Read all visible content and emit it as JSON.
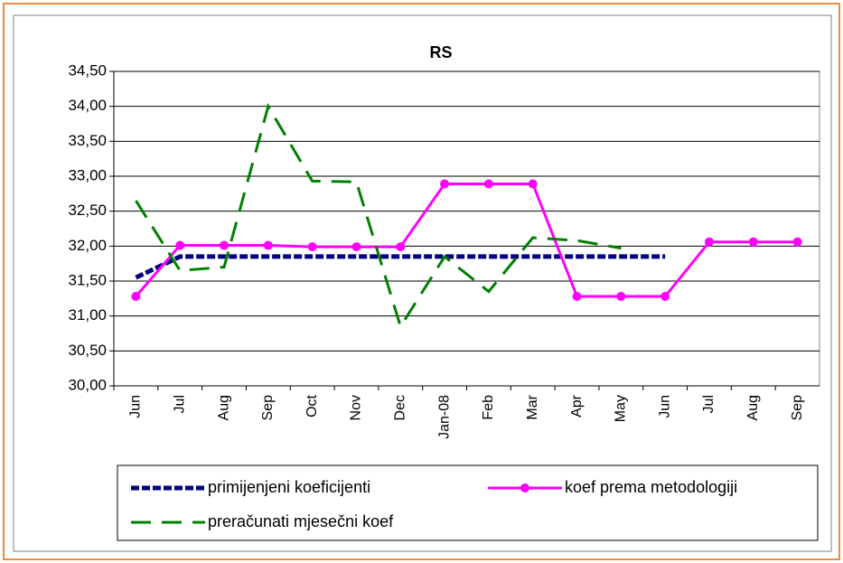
{
  "chart_data": {
    "type": "line",
    "title": "RS",
    "categories": [
      "Jun",
      "Jul",
      "Aug",
      "Sep",
      "Oct",
      "Nov",
      "Dec",
      "Jan-08",
      "Feb",
      "Mar",
      "Apr",
      "May",
      "Jun",
      "Jul",
      "Aug",
      "Sep"
    ],
    "ylim": [
      30,
      34.5
    ],
    "yticks": [
      {
        "value": 30,
        "label": "30,00"
      },
      {
        "value": 30.5,
        "label": "30,50"
      },
      {
        "value": 31,
        "label": "31,00"
      },
      {
        "value": 31.5,
        "label": "31,50"
      },
      {
        "value": 32,
        "label": "32,00"
      },
      {
        "value": 32.5,
        "label": "32,50"
      },
      {
        "value": 33,
        "label": "33,00"
      },
      {
        "value": 33.5,
        "label": "33,50"
      },
      {
        "value": 34,
        "label": "34,00"
      },
      {
        "value": 34.5,
        "label": "34,50"
      }
    ],
    "grid": true,
    "legend": "bottom",
    "series": [
      {
        "name": "primijenjeni koeficijenti",
        "color": "#000080",
        "line_style": "dotted-thick",
        "marker": "none",
        "values": [
          31.55,
          31.85,
          31.85,
          31.85,
          31.85,
          31.85,
          31.85,
          31.85,
          31.85,
          31.85,
          31.85,
          31.85,
          31.85,
          null,
          null,
          null
        ]
      },
      {
        "name": "koef prema metodologiji",
        "color": "#ff00ff",
        "line_style": "solid",
        "marker": "circle",
        "values": [
          31.28,
          32.01,
          32.01,
          32.01,
          31.99,
          31.99,
          31.99,
          32.89,
          32.89,
          32.89,
          31.28,
          31.28,
          31.28,
          32.06,
          32.06,
          32.06
        ]
      },
      {
        "name": "preračunati mjesečni koef",
        "color": "#008000",
        "line_style": "dashed",
        "marker": "none",
        "values": [
          32.65,
          31.65,
          31.7,
          34.0,
          32.93,
          32.92,
          30.85,
          31.85,
          31.35,
          32.12,
          32.08,
          31.97,
          null,
          null,
          null,
          null
        ]
      }
    ]
  }
}
